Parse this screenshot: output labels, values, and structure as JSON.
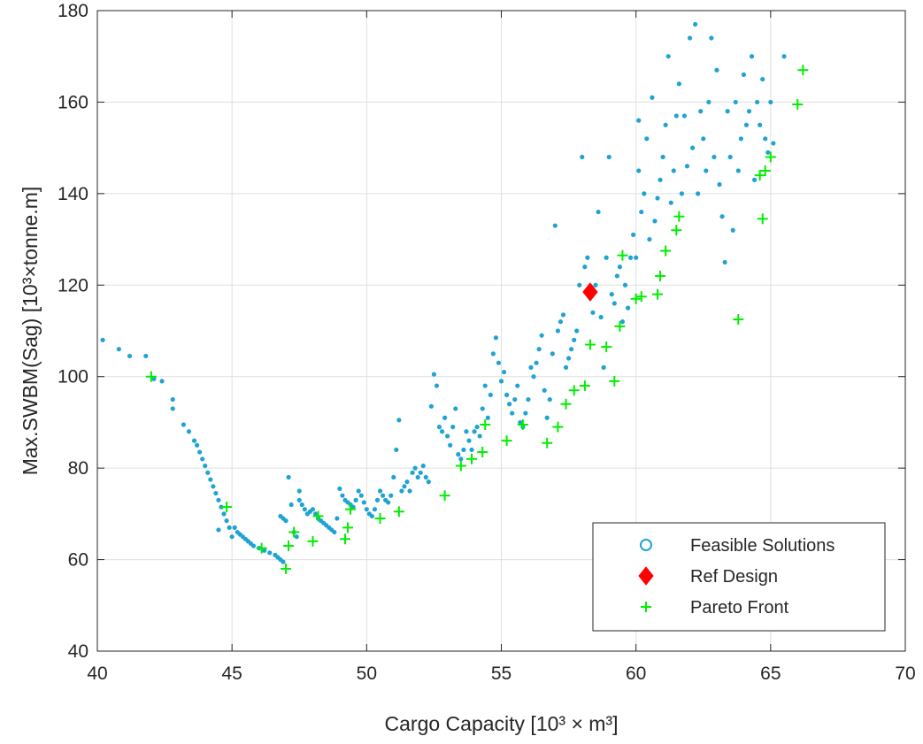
{
  "chart_data": {
    "type": "scatter",
    "title": "",
    "xlabel": "Cargo Capacity [10³ × m³]",
    "ylabel": "Max.SWBM(Sag) [10³×tonne.m]",
    "xlim": [
      40,
      70
    ],
    "ylim": [
      40,
      180
    ],
    "xticks": [
      "40",
      "45",
      "50",
      "55",
      "60",
      "65",
      "70"
    ],
    "yticks": [
      "40",
      "60",
      "80",
      "100",
      "120",
      "140",
      "160",
      "180"
    ],
    "grid": true,
    "legend_position": "bottom-right",
    "series": [
      {
        "name": "Feasible Solutions",
        "marker": "circle",
        "color": "#1fa3d3",
        "points": [
          [
            40.2,
            108
          ],
          [
            40.8,
            106
          ],
          [
            41.2,
            104.5
          ],
          [
            41.8,
            104.5
          ],
          [
            42.1,
            99.5
          ],
          [
            42.4,
            99
          ],
          [
            42.8,
            95
          ],
          [
            42.8,
            93
          ],
          [
            43.2,
            89.5
          ],
          [
            43.4,
            88
          ],
          [
            43.6,
            86
          ],
          [
            43.7,
            85
          ],
          [
            43.8,
            83.5
          ],
          [
            43.9,
            82
          ],
          [
            44.0,
            80.5
          ],
          [
            44.1,
            79
          ],
          [
            44.2,
            77.5
          ],
          [
            44.3,
            76
          ],
          [
            44.4,
            74.5
          ],
          [
            44.5,
            73
          ],
          [
            44.5,
            66.5
          ],
          [
            44.6,
            71.5
          ],
          [
            44.7,
            70
          ],
          [
            44.8,
            68.5
          ],
          [
            44.9,
            67
          ],
          [
            45.0,
            65
          ],
          [
            45.1,
            67
          ],
          [
            45.2,
            66
          ],
          [
            45.3,
            65.5
          ],
          [
            45.4,
            65
          ],
          [
            45.5,
            64.5
          ],
          [
            45.6,
            64
          ],
          [
            45.7,
            63.5
          ],
          [
            45.8,
            63
          ],
          [
            46.0,
            62.5
          ],
          [
            46.2,
            62
          ],
          [
            46.4,
            61.5
          ],
          [
            46.6,
            61
          ],
          [
            46.7,
            60.5
          ],
          [
            46.8,
            60
          ],
          [
            46.9,
            59.5
          ],
          [
            46.8,
            69.5
          ],
          [
            46.9,
            69
          ],
          [
            47.0,
            68.5
          ],
          [
            47.1,
            78
          ],
          [
            47.2,
            72
          ],
          [
            47.3,
            66
          ],
          [
            47.4,
            65
          ],
          [
            47.5,
            75
          ],
          [
            47.5,
            73
          ],
          [
            47.6,
            72
          ],
          [
            47.7,
            71
          ],
          [
            47.8,
            70
          ],
          [
            47.9,
            70.5
          ],
          [
            48.0,
            71
          ],
          [
            48.1,
            70
          ],
          [
            48.2,
            69
          ],
          [
            48.3,
            68.5
          ],
          [
            48.4,
            68
          ],
          [
            48.5,
            67.5
          ],
          [
            48.6,
            67
          ],
          [
            48.7,
            66.5
          ],
          [
            48.8,
            66
          ],
          [
            48.9,
            69
          ],
          [
            49.0,
            75.5
          ],
          [
            49.1,
            74
          ],
          [
            49.2,
            73
          ],
          [
            49.3,
            72.5
          ],
          [
            49.4,
            72
          ],
          [
            49.5,
            71.5
          ],
          [
            49.6,
            73
          ],
          [
            49.7,
            75
          ],
          [
            49.8,
            74
          ],
          [
            49.9,
            72.5
          ],
          [
            50.0,
            71
          ],
          [
            50.1,
            70
          ],
          [
            50.2,
            69.5
          ],
          [
            50.3,
            71
          ],
          [
            50.4,
            73
          ],
          [
            50.5,
            75
          ],
          [
            50.6,
            74
          ],
          [
            50.7,
            73
          ],
          [
            50.8,
            72.5
          ],
          [
            50.9,
            74
          ],
          [
            51.0,
            78
          ],
          [
            51.1,
            84
          ],
          [
            51.2,
            90.5
          ],
          [
            51.3,
            75
          ],
          [
            51.4,
            76
          ],
          [
            51.5,
            77
          ],
          [
            51.6,
            75
          ],
          [
            51.7,
            79
          ],
          [
            51.8,
            80
          ],
          [
            51.9,
            78
          ],
          [
            52.0,
            79
          ],
          [
            52.1,
            80.5
          ],
          [
            52.2,
            78
          ],
          [
            52.3,
            77
          ],
          [
            52.4,
            93.5
          ],
          [
            52.5,
            100.5
          ],
          [
            52.6,
            98
          ],
          [
            52.7,
            89
          ],
          [
            52.8,
            88
          ],
          [
            52.9,
            91
          ],
          [
            53.0,
            87
          ],
          [
            53.1,
            85
          ],
          [
            53.2,
            89
          ],
          [
            53.3,
            93
          ],
          [
            53.4,
            83
          ],
          [
            53.5,
            82
          ],
          [
            53.6,
            84
          ],
          [
            53.7,
            88
          ],
          [
            53.8,
            86
          ],
          [
            53.9,
            84
          ],
          [
            54.0,
            88
          ],
          [
            54.1,
            89
          ],
          [
            54.2,
            87
          ],
          [
            54.3,
            93
          ],
          [
            54.4,
            98
          ],
          [
            54.5,
            91
          ],
          [
            54.6,
            96
          ],
          [
            54.7,
            105
          ],
          [
            54.8,
            108.5
          ],
          [
            54.9,
            103
          ],
          [
            55.0,
            99
          ],
          [
            55.1,
            101
          ],
          [
            55.2,
            96
          ],
          [
            55.3,
            94
          ],
          [
            55.4,
            92
          ],
          [
            55.5,
            95
          ],
          [
            55.6,
            98
          ],
          [
            55.7,
            90
          ],
          [
            55.8,
            89
          ],
          [
            55.9,
            92
          ],
          [
            56.0,
            95
          ],
          [
            56.1,
            102
          ],
          [
            56.2,
            100
          ],
          [
            56.3,
            103
          ],
          [
            56.4,
            106
          ],
          [
            56.5,
            109
          ],
          [
            56.6,
            97
          ],
          [
            56.7,
            91
          ],
          [
            56.8,
            95
          ],
          [
            56.9,
            105
          ],
          [
            57.0,
            133
          ],
          [
            57.1,
            110
          ],
          [
            57.2,
            112
          ],
          [
            57.3,
            113.5
          ],
          [
            57.4,
            102
          ],
          [
            57.5,
            104
          ],
          [
            57.6,
            106
          ],
          [
            57.7,
            108
          ],
          [
            57.8,
            110
          ],
          [
            57.9,
            120
          ],
          [
            58.0,
            148
          ],
          [
            58.1,
            124
          ],
          [
            58.2,
            126
          ],
          [
            58.3,
            118
          ],
          [
            58.4,
            114
          ],
          [
            58.5,
            120
          ],
          [
            58.6,
            136
          ],
          [
            58.7,
            113
          ],
          [
            58.8,
            102
          ],
          [
            58.9,
            126
          ],
          [
            59.0,
            148
          ],
          [
            59.1,
            118
          ],
          [
            59.2,
            116
          ],
          [
            59.3,
            122
          ],
          [
            59.4,
            124
          ],
          [
            59.5,
            112
          ],
          [
            59.6,
            120
          ],
          [
            59.7,
            115
          ],
          [
            59.8,
            126
          ],
          [
            59.9,
            131
          ],
          [
            60.0,
            126
          ],
          [
            60.1,
            145
          ],
          [
            60.1,
            156
          ],
          [
            60.2,
            136
          ],
          [
            60.3,
            140
          ],
          [
            60.4,
            152
          ],
          [
            60.5,
            130
          ],
          [
            60.6,
            161
          ],
          [
            60.7,
            134
          ],
          [
            60.8,
            139
          ],
          [
            60.9,
            143
          ],
          [
            61.0,
            148
          ],
          [
            61.1,
            155
          ],
          [
            61.2,
            170
          ],
          [
            61.3,
            138
          ],
          [
            61.4,
            145
          ],
          [
            61.5,
            157
          ],
          [
            61.6,
            164
          ],
          [
            61.7,
            140
          ],
          [
            61.8,
            157
          ],
          [
            61.9,
            146
          ],
          [
            62.0,
            174
          ],
          [
            62.1,
            150
          ],
          [
            62.2,
            177
          ],
          [
            62.3,
            140
          ],
          [
            62.4,
            158
          ],
          [
            62.5,
            152
          ],
          [
            62.6,
            145
          ],
          [
            62.7,
            160
          ],
          [
            62.8,
            174
          ],
          [
            62.9,
            148
          ],
          [
            63.0,
            167
          ],
          [
            63.1,
            142
          ],
          [
            63.2,
            135
          ],
          [
            63.3,
            125
          ],
          [
            63.4,
            158
          ],
          [
            63.5,
            148
          ],
          [
            63.6,
            132
          ],
          [
            63.7,
            160
          ],
          [
            63.8,
            145
          ],
          [
            63.9,
            152
          ],
          [
            64.0,
            166
          ],
          [
            64.1,
            155
          ],
          [
            64.2,
            158
          ],
          [
            64.3,
            170
          ],
          [
            64.4,
            143
          ],
          [
            64.5,
            160
          ],
          [
            64.6,
            155
          ],
          [
            64.7,
            165
          ],
          [
            64.8,
            152
          ],
          [
            64.9,
            149
          ],
          [
            65.0,
            160
          ],
          [
            65.1,
            151
          ],
          [
            65.5,
            170
          ]
        ]
      },
      {
        "name": "Ref Design",
        "marker": "diamond",
        "color": "#ff0000",
        "points": [
          [
            58.3,
            118.5
          ]
        ]
      },
      {
        "name": "Pareto Front",
        "marker": "plus",
        "color": "#00ee00",
        "points": [
          [
            42.0,
            100
          ],
          [
            44.8,
            71.5
          ],
          [
            46.1,
            62.5
          ],
          [
            47.0,
            58
          ],
          [
            47.1,
            63
          ],
          [
            47.3,
            66
          ],
          [
            48.0,
            64
          ],
          [
            48.2,
            69.5
          ],
          [
            49.2,
            64.5
          ],
          [
            49.3,
            67
          ],
          [
            49.4,
            71
          ],
          [
            50.5,
            69
          ],
          [
            51.2,
            70.5
          ],
          [
            52.9,
            74
          ],
          [
            53.5,
            80.5
          ],
          [
            53.9,
            82
          ],
          [
            54.3,
            83.5
          ],
          [
            54.4,
            89.5
          ],
          [
            55.2,
            86
          ],
          [
            55.8,
            89.5
          ],
          [
            56.7,
            85.5
          ],
          [
            57.1,
            89
          ],
          [
            57.4,
            94
          ],
          [
            57.7,
            97
          ],
          [
            58.1,
            98
          ],
          [
            58.3,
            107
          ],
          [
            58.9,
            106.5
          ],
          [
            59.2,
            99
          ],
          [
            59.4,
            111
          ],
          [
            59.5,
            126.5
          ],
          [
            60.0,
            117
          ],
          [
            60.2,
            117.5
          ],
          [
            60.8,
            118
          ],
          [
            60.9,
            122
          ],
          [
            61.1,
            127.5
          ],
          [
            61.5,
            132
          ],
          [
            61.6,
            135
          ],
          [
            63.8,
            112.5
          ],
          [
            64.6,
            144
          ],
          [
            64.7,
            134.5
          ],
          [
            64.8,
            145
          ],
          [
            65.0,
            148
          ],
          [
            66.0,
            159.5
          ],
          [
            66.2,
            167
          ]
        ]
      }
    ]
  }
}
